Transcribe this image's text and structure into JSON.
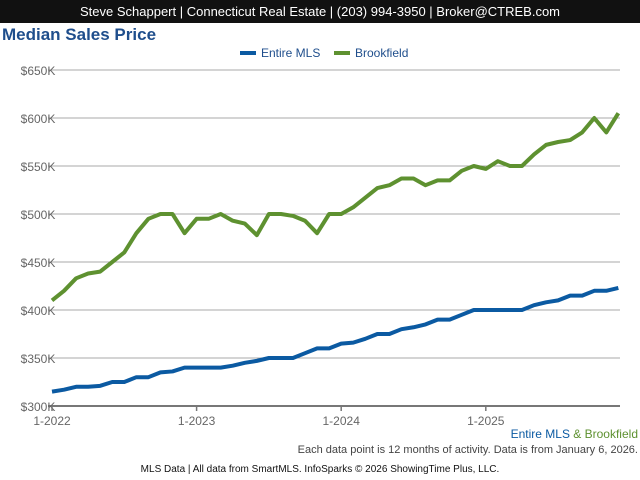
{
  "header": {
    "text": "Steve Schappert | Connecticut Real Estate | (203) 994-3950 | Broker@CTREB.com"
  },
  "bottom_legend": {
    "a": "Entire MLS",
    "amp": " & ",
    "b": "Brookfield"
  },
  "note": "Each data point is 12 months of activity. Data is from January 6, 2026.",
  "footer": "MLS Data | All data from SmartMLS. InfoSparks © 2026 ShowingTime Plus, LLC.",
  "chart_data": {
    "type": "line",
    "title": "Median Sales Price",
    "ylim": [
      300000,
      650000
    ],
    "yticks": [
      300000,
      350000,
      400000,
      450000,
      500000,
      550000,
      600000,
      650000
    ],
    "ytick_labels": [
      "$300K",
      "$350K",
      "$400K",
      "$450K",
      "$500K",
      "$550K",
      "$600K",
      "$650K"
    ],
    "xtick_labels": [
      "1-2022",
      "1-2023",
      "1-2024",
      "1-2025"
    ],
    "x_start": "1-2022",
    "x_end": "12-2025",
    "grid": true,
    "legend": "top",
    "series": [
      {
        "name": "Entire MLS",
        "color": "#0b5aa2",
        "values": [
          315,
          317,
          320,
          320,
          321,
          325,
          325,
          330,
          330,
          335,
          336,
          340,
          340,
          340,
          340,
          342,
          345,
          347,
          350,
          350,
          350,
          355,
          360,
          360,
          365,
          366,
          370,
          375,
          375,
          380,
          382,
          385,
          390,
          390,
          395,
          400,
          400,
          400,
          400,
          400,
          405,
          408,
          410,
          415,
          415,
          420,
          420,
          423
        ]
      },
      {
        "name": "Brookfield",
        "color": "#5e9130",
        "values": [
          410,
          420,
          433,
          438,
          440,
          450,
          460,
          480,
          495,
          500,
          500,
          480,
          495,
          495,
          500,
          493,
          490,
          478,
          500,
          500,
          498,
          493,
          480,
          500,
          500,
          507,
          517,
          527,
          530,
          537,
          537,
          530,
          535,
          535,
          545,
          550,
          547,
          555,
          550,
          550,
          562,
          572,
          575,
          577,
          585,
          600,
          585,
          605
        ]
      }
    ]
  }
}
